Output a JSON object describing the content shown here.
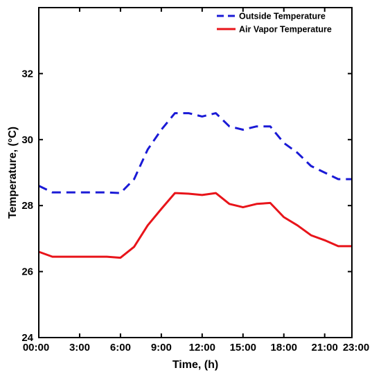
{
  "chart_data": {
    "type": "line",
    "title": "",
    "xlabel": "Time, (h)",
    "ylabel": "Temperature, (°C)",
    "xlim": [
      0,
      23
    ],
    "ylim": [
      24,
      34
    ],
    "xticks": [
      0,
      3,
      6,
      9,
      12,
      15,
      18,
      21,
      23
    ],
    "xtick_labels": [
      "00:00",
      "3:00",
      "6:00",
      "9:00",
      "12:00",
      "15:00",
      "18:00",
      "21:00",
      "23:00"
    ],
    "yticks": [
      24,
      26,
      28,
      30,
      32
    ],
    "ytick_labels": [
      "24",
      "26",
      "28",
      "30",
      "32"
    ],
    "grid": false,
    "legend_position": "top-right",
    "x": [
      0,
      1,
      2,
      3,
      4,
      5,
      6,
      7,
      8,
      9,
      10,
      11,
      12,
      13,
      14,
      15,
      16,
      17,
      18,
      19,
      20,
      21,
      22,
      23
    ],
    "series": [
      {
        "name": "Outside Temperature",
        "color": "#1a1ad6",
        "style": "dashed",
        "values": [
          28.6,
          28.4,
          28.4,
          28.4,
          28.4,
          28.4,
          28.38,
          28.8,
          29.7,
          30.3,
          30.8,
          30.8,
          30.7,
          30.8,
          30.4,
          30.3,
          30.4,
          30.4,
          29.9,
          29.6,
          29.2,
          29.0,
          28.8,
          28.8
        ]
      },
      {
        "name": "Air Vapor Temperature",
        "color": "#e8141a",
        "style": "solid",
        "values": [
          26.6,
          26.45,
          26.45,
          26.45,
          26.45,
          26.45,
          26.42,
          26.75,
          27.4,
          27.9,
          28.38,
          28.36,
          28.32,
          28.38,
          28.05,
          27.95,
          28.05,
          28.08,
          27.65,
          27.4,
          27.1,
          26.95,
          26.77,
          26.77
        ]
      }
    ]
  }
}
